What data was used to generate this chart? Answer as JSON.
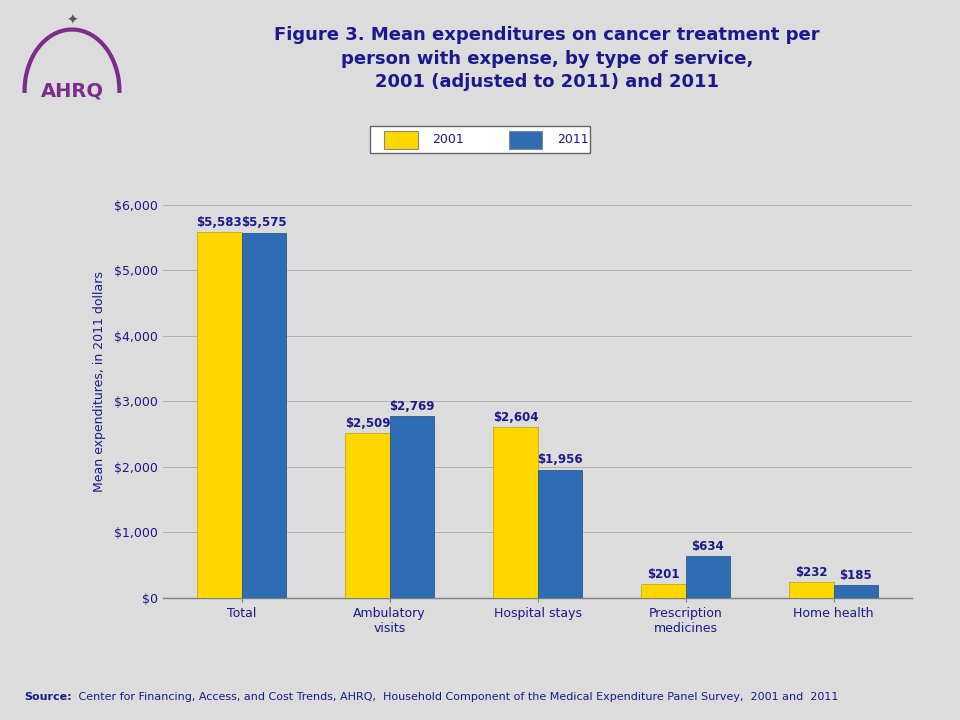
{
  "title": "Figure 3. Mean expenditures on cancer treatment per\nperson with expense, by type of service,\n2001 (adjusted to 2011) and 2011",
  "categories": [
    "Total",
    "Ambulatory\nvisits",
    "Hospital stays",
    "Prescription\nmedicines",
    "Home health"
  ],
  "values_2001": [
    5583,
    2509,
    2604,
    201,
    232
  ],
  "values_2011": [
    5575,
    2769,
    1956,
    634,
    185
  ],
  "labels_2001": [
    "$5,583",
    "$2,509",
    "$2,604",
    "$201",
    "$232"
  ],
  "labels_2011": [
    "$5,575",
    "$2,769",
    "$1,956",
    "$634",
    "$185"
  ],
  "color_2001": "#FFD700",
  "color_2011": "#2E6DB4",
  "ylabel": "Mean expenditures, in 2011 dollars",
  "ylim": [
    0,
    6600
  ],
  "yticks": [
    0,
    1000,
    2000,
    3000,
    4000,
    5000,
    6000
  ],
  "ytick_labels": [
    "$0",
    "$1,000",
    "$2,000",
    "$3,000",
    "$4,000",
    "$5,000",
    "$6,000"
  ],
  "legend_2001": "2001",
  "legend_2011": "2011",
  "source_bold": "Source:",
  "source_rest": " Center for Financing, Access, and Cost Trends, AHRQ,  Household Component of the Medical Expenditure Panel Survey,  2001 and  2011",
  "header_bg_color": "#CACACA",
  "chart_bg_color": "#DCDCDC",
  "plot_bg_color": "#DCDCDC",
  "text_color": "#1A1A8C",
  "bar_label_fontsize": 8.5,
  "title_fontsize": 13,
  "axis_label_fontsize": 9,
  "tick_label_fontsize": 9,
  "legend_fontsize": 9,
  "source_fontsize": 8
}
